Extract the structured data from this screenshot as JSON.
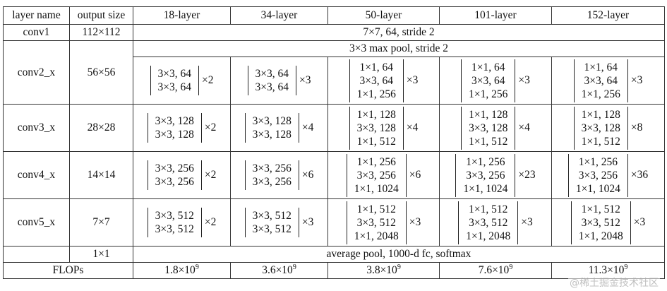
{
  "headers": [
    "layer name",
    "output size",
    "18-layer",
    "34-layer",
    "50-layer",
    "101-layer",
    "152-layer"
  ],
  "conv1": {
    "name": "conv1",
    "size": "112×112",
    "spec": "7×7, 64, stride 2"
  },
  "conv2": {
    "name": "conv2_x",
    "size": "56×56",
    "pool": "3×3 max pool, stride 2",
    "blocks": [
      {
        "lines": [
          "3×3, 64",
          "3×3, 64"
        ],
        "mult": "×2"
      },
      {
        "lines": [
          "3×3, 64",
          "3×3, 64"
        ],
        "mult": "×3"
      },
      {
        "lines": [
          "1×1, 64",
          "3×3, 64",
          "1×1, 256"
        ],
        "mult": "×3"
      },
      {
        "lines": [
          "1×1, 64",
          "3×3, 64",
          "1×1, 256"
        ],
        "mult": "×3"
      },
      {
        "lines": [
          "1×1, 64",
          "3×3, 64",
          "1×1, 256"
        ],
        "mult": "×3"
      }
    ]
  },
  "conv3": {
    "name": "conv3_x",
    "size": "28×28",
    "blocks": [
      {
        "lines": [
          "3×3, 128",
          "3×3, 128"
        ],
        "mult": "×2"
      },
      {
        "lines": [
          "3×3, 128",
          "3×3, 128"
        ],
        "mult": "×4"
      },
      {
        "lines": [
          "1×1, 128",
          "3×3, 128",
          "1×1, 512"
        ],
        "mult": "×4"
      },
      {
        "lines": [
          "1×1, 128",
          "3×3, 128",
          "1×1, 512"
        ],
        "mult": "×4"
      },
      {
        "lines": [
          "1×1, 128",
          "3×3, 128",
          "1×1, 512"
        ],
        "mult": "×8"
      }
    ]
  },
  "conv4": {
    "name": "conv4_x",
    "size": "14×14",
    "blocks": [
      {
        "lines": [
          "3×3, 256",
          "3×3, 256"
        ],
        "mult": "×2"
      },
      {
        "lines": [
          "3×3, 256",
          "3×3, 256"
        ],
        "mult": "×6"
      },
      {
        "lines": [
          "1×1, 256",
          "3×3, 256",
          "1×1, 1024"
        ],
        "mult": "×6"
      },
      {
        "lines": [
          "1×1, 256",
          "3×3, 256",
          "1×1, 1024"
        ],
        "mult": "×23"
      },
      {
        "lines": [
          "1×1, 256",
          "3×3, 256",
          "1×1, 1024"
        ],
        "mult": "×36"
      }
    ]
  },
  "conv5": {
    "name": "conv5_x",
    "size": "7×7",
    "blocks": [
      {
        "lines": [
          "3×3, 512",
          "3×3, 512"
        ],
        "mult": "×2"
      },
      {
        "lines": [
          "3×3, 512",
          "3×3, 512"
        ],
        "mult": "×3"
      },
      {
        "lines": [
          "1×1, 512",
          "3×3, 512",
          "1×1, 2048"
        ],
        "mult": "×3"
      },
      {
        "lines": [
          "1×1, 512",
          "3×3, 512",
          "1×1, 2048"
        ],
        "mult": "×3"
      },
      {
        "lines": [
          "1×1, 512",
          "3×3, 512",
          "1×1, 2048"
        ],
        "mult": "×3"
      }
    ]
  },
  "final": {
    "size": "1×1",
    "spec": "average pool, 1000-d fc, softmax"
  },
  "flops": {
    "label": "FLOPs",
    "values": [
      {
        "mant": "1.8×10",
        "exp": "9"
      },
      {
        "mant": "3.6×10",
        "exp": "9"
      },
      {
        "mant": "3.8×10",
        "exp": "9"
      },
      {
        "mant": "7.6×10",
        "exp": "9"
      },
      {
        "mant": "11.3×10",
        "exp": "9"
      }
    ]
  },
  "watermark": "@稀土掘金技术社区"
}
